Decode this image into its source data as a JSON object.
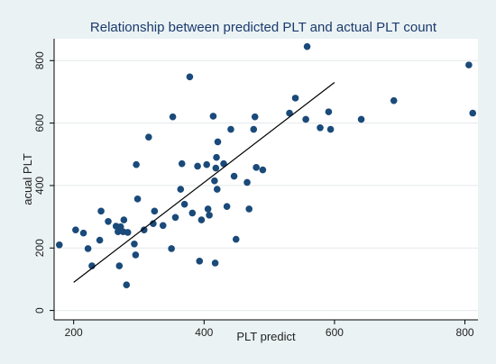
{
  "chart_data": {
    "type": "scatter",
    "title": "Relationship between predicted PLT and actual PLT count",
    "xlabel": "PLT predict",
    "ylabel": "acual PLT",
    "xlim": [
      170,
      820
    ],
    "ylim": [
      -30,
      870
    ],
    "x_ticks": [
      200,
      400,
      600,
      800
    ],
    "y_ticks": [
      0,
      200,
      400,
      600,
      800
    ],
    "grid": "horizontal",
    "legend": "none",
    "colors": {
      "marker": "#1a4a7a",
      "line": "#000000",
      "plot_bg": "#ffffff",
      "figure_bg": "#eaf2f3",
      "title": "#1a3a6e"
    },
    "points": [
      {
        "x": 178,
        "y": 210
      },
      {
        "x": 203,
        "y": 258
      },
      {
        "x": 215,
        "y": 248
      },
      {
        "x": 222,
        "y": 198
      },
      {
        "x": 228,
        "y": 143
      },
      {
        "x": 240,
        "y": 225
      },
      {
        "x": 242,
        "y": 318
      },
      {
        "x": 253,
        "y": 285
      },
      {
        "x": 265,
        "y": 270
      },
      {
        "x": 268,
        "y": 252
      },
      {
        "x": 270,
        "y": 143
      },
      {
        "x": 272,
        "y": 268
      },
      {
        "x": 276,
        "y": 252
      },
      {
        "x": 277,
        "y": 290
      },
      {
        "x": 283,
        "y": 250
      },
      {
        "x": 281,
        "y": 82
      },
      {
        "x": 293,
        "y": 213
      },
      {
        "x": 295,
        "y": 178
      },
      {
        "x": 296,
        "y": 467
      },
      {
        "x": 298,
        "y": 357
      },
      {
        "x": 308,
        "y": 258
      },
      {
        "x": 315,
        "y": 555
      },
      {
        "x": 322,
        "y": 278
      },
      {
        "x": 324,
        "y": 318
      },
      {
        "x": 337,
        "y": 272
      },
      {
        "x": 350,
        "y": 198
      },
      {
        "x": 352,
        "y": 620
      },
      {
        "x": 356,
        "y": 298
      },
      {
        "x": 364,
        "y": 388
      },
      {
        "x": 366,
        "y": 470
      },
      {
        "x": 370,
        "y": 340
      },
      {
        "x": 378,
        "y": 748
      },
      {
        "x": 382,
        "y": 312
      },
      {
        "x": 390,
        "y": 462
      },
      {
        "x": 393,
        "y": 158
      },
      {
        "x": 396,
        "y": 290
      },
      {
        "x": 404,
        "y": 467
      },
      {
        "x": 406,
        "y": 325
      },
      {
        "x": 408,
        "y": 305
      },
      {
        "x": 414,
        "y": 622
      },
      {
        "x": 416,
        "y": 415
      },
      {
        "x": 417,
        "y": 152
      },
      {
        "x": 418,
        "y": 456
      },
      {
        "x": 419,
        "y": 490
      },
      {
        "x": 420,
        "y": 388
      },
      {
        "x": 421,
        "y": 540
      },
      {
        "x": 430,
        "y": 470
      },
      {
        "x": 435,
        "y": 333
      },
      {
        "x": 441,
        "y": 580
      },
      {
        "x": 446,
        "y": 430
      },
      {
        "x": 449,
        "y": 228
      },
      {
        "x": 466,
        "y": 410
      },
      {
        "x": 469,
        "y": 325
      },
      {
        "x": 476,
        "y": 580
      },
      {
        "x": 478,
        "y": 620
      },
      {
        "x": 480,
        "y": 458
      },
      {
        "x": 490,
        "y": 450
      },
      {
        "x": 531,
        "y": 632
      },
      {
        "x": 540,
        "y": 680
      },
      {
        "x": 556,
        "y": 612
      },
      {
        "x": 558,
        "y": 845
      },
      {
        "x": 578,
        "y": 585
      },
      {
        "x": 591,
        "y": 636
      },
      {
        "x": 594,
        "y": 580
      },
      {
        "x": 641,
        "y": 612
      },
      {
        "x": 691,
        "y": 672
      },
      {
        "x": 806,
        "y": 786
      },
      {
        "x": 812,
        "y": 632
      }
    ],
    "fit_line": {
      "x": [
        200,
        600
      ],
      "y": [
        90,
        730
      ]
    }
  }
}
